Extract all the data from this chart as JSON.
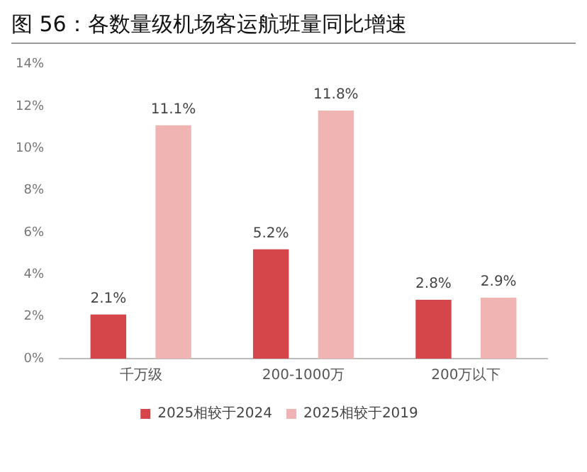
{
  "chart_data": {
    "type": "bar",
    "title": "图 56：各数量级机场客运航班量同比增速",
    "categories": [
      "千万级",
      "200-1000万",
      "200万以下"
    ],
    "series": [
      {
        "name": "2025相较于2024",
        "color": "#d44649",
        "values": [
          2.1,
          5.2,
          2.8
        ],
        "value_labels": [
          "2.1%",
          "5.2%",
          "2.8%"
        ]
      },
      {
        "name": "2025相较于2019",
        "color": "#f0b4b3",
        "values": [
          11.1,
          11.8,
          2.9
        ],
        "value_labels": [
          "11.1%",
          "11.8%",
          "2.9%"
        ]
      }
    ],
    "ylim": [
      0,
      14
    ],
    "yticks": [
      {
        "value": 0,
        "label": "0%"
      },
      {
        "value": 2,
        "label": "2%"
      },
      {
        "value": 4,
        "label": "4%"
      },
      {
        "value": 6,
        "label": "6%"
      },
      {
        "value": 8,
        "label": "8%"
      },
      {
        "value": 10,
        "label": "10%"
      },
      {
        "value": 12,
        "label": "12%"
      },
      {
        "value": 14,
        "label": "14%"
      }
    ],
    "grid": false,
    "legend": "bottom"
  }
}
